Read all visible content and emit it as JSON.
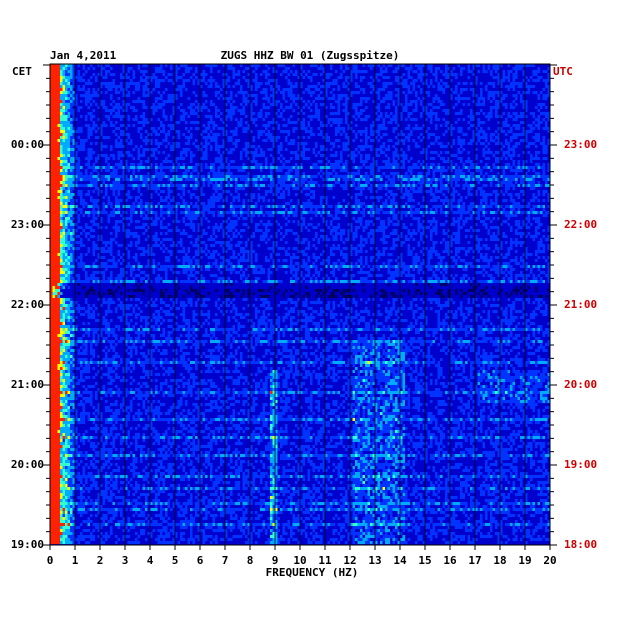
{
  "chart_data": {
    "type": "heatmap",
    "date": "Jan 4,2011",
    "title": "ZUGS HHZ BW 01 (Zugsspitze)",
    "xlabel": "FREQUENCY (HZ)",
    "xlim": [
      0,
      20
    ],
    "x_ticks": [
      "0",
      "1",
      "2",
      "3",
      "4",
      "5",
      "6",
      "7",
      "8",
      "9",
      "10",
      "11",
      "12",
      "13",
      "14",
      "15",
      "16",
      "17",
      "18",
      "19",
      "20"
    ],
    "left_axis_label": "CET",
    "right_axis_label": "UTC",
    "left_ticks": [
      "00:00",
      "23:00",
      "22:00",
      "21:00",
      "20:00",
      "19:00"
    ],
    "right_ticks": [
      "23:00",
      "22:00",
      "21:00",
      "20:00",
      "19:00",
      "18:00"
    ],
    "time_direction": "top is latest, bottom is earliest",
    "grid": true,
    "colors": {
      "background": "#0000cc",
      "right_axis": "#cc0000",
      "colormap": [
        "#000066",
        "#0000cc",
        "#0033ff",
        "#00aaff",
        "#33ffcc",
        "#ffff00",
        "#ff2200"
      ]
    },
    "features": [
      "strong low-frequency energy (0-1 Hz) throughout, red at about 0.2 Hz",
      "dark quiet band near 21:10 UTC",
      "elevated energy around 9 Hz and 12-14 Hz between 18:30 and 20:30 UTC"
    ]
  }
}
